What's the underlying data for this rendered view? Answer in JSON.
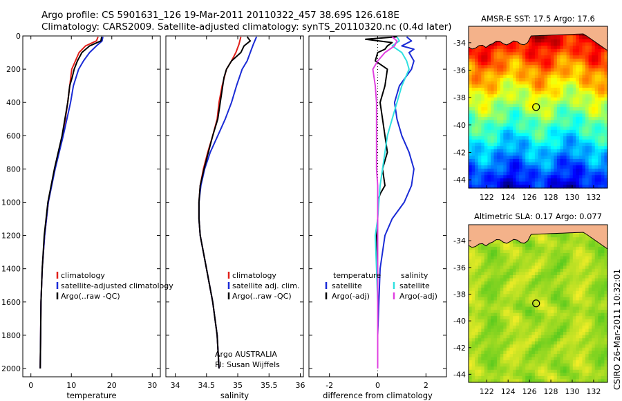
{
  "header": {
    "line1": "Argo profile: CS 5901631_126 19-Mar-2011 20110322_457 38.69S 126.618E",
    "line2": "Climatology: CARS2009. Satellite-adjusted climatology: synTS_20110320.nc (0.4d later)"
  },
  "side_stamp": "CSIRO 26-Mar-2011 10:32:01",
  "colors": {
    "climatology": "#e0201a",
    "satellite": "#1a2bd6",
    "argo": "#000000",
    "argo_adj": "#e040e0",
    "satellite_cyan": "#30e0e0",
    "land": "#f4b28a"
  },
  "chart_data": [
    {
      "type": "line",
      "xlabel": "temperature",
      "xticks": [
        0,
        10,
        20,
        30
      ],
      "xlim": [
        -2,
        32
      ],
      "yticks": [
        0,
        200,
        400,
        600,
        800,
        1000,
        1200,
        1400,
        1600,
        1800,
        2000
      ],
      "ylim": [
        2050,
        0
      ],
      "legend": [
        "climatology",
        "satellite-adjusted climatology",
        "Argo(..raw -QC)"
      ],
      "series": [
        {
          "name": "climatology",
          "color": "#e0201a",
          "depth": [
            5,
            30,
            60,
            100,
            150,
            200,
            300,
            400,
            500,
            600,
            800,
            1000,
            1200,
            1400,
            1600,
            1800,
            2000
          ],
          "values": [
            16.6,
            16.2,
            13.5,
            11.9,
            11.0,
            10.1,
            9.6,
            9.1,
            8.5,
            7.8,
            5.9,
            4.3,
            3.4,
            2.8,
            2.5,
            2.4,
            2.3
          ]
        },
        {
          "name": "satellite-adjusted climatology",
          "color": "#1a2bd6",
          "depth": [
            5,
            30,
            60,
            100,
            150,
            200,
            300,
            400,
            500,
            600,
            800,
            1000,
            1200,
            1400,
            1600,
            1800,
            2000
          ],
          "values": [
            17.8,
            17.6,
            16.2,
            14.5,
            13.0,
            11.8,
            10.5,
            9.8,
            8.9,
            8.0,
            6.0,
            4.3,
            3.4,
            2.8,
            2.5,
            2.4,
            2.3
          ]
        },
        {
          "name": "Argo(..raw -QC)",
          "color": "#000000",
          "depth": [
            5,
            30,
            60,
            100,
            150,
            200,
            250,
            300,
            400,
            500,
            600,
            800,
            1000,
            1200,
            1400,
            1600,
            1800,
            2000
          ],
          "values": [
            17.5,
            17.3,
            14.5,
            12.6,
            11.5,
            10.7,
            10.2,
            9.6,
            9.1,
            8.4,
            7.7,
            5.8,
            4.2,
            3.3,
            2.8,
            2.5,
            2.4,
            2.3
          ]
        }
      ]
    },
    {
      "type": "line",
      "xlabel": "salinity",
      "xticks": [
        34,
        34.5,
        35,
        35.5,
        36
      ],
      "xlim": [
        33.85,
        36.05
      ],
      "ylim": [
        2050,
        0
      ],
      "legend": [
        "climatology",
        "satellite adj. clim.",
        "Argo(..raw -QC)"
      ],
      "annotations": [
        "Argo AUSTRALIA",
        "PI: Susan Wijffels"
      ],
      "series": [
        {
          "name": "climatology",
          "color": "#e0201a",
          "depth": [
            5,
            50,
            100,
            150,
            200,
            300,
            400,
            500,
            600,
            700,
            800,
            900,
            1000,
            1100,
            1200,
            1400,
            1600,
            1800,
            2000
          ],
          "values": [
            35.05,
            35.02,
            34.97,
            34.9,
            34.82,
            34.75,
            34.7,
            34.67,
            34.6,
            34.52,
            34.45,
            34.4,
            34.38,
            34.38,
            34.4,
            34.5,
            34.6,
            34.67,
            34.7
          ]
        },
        {
          "name": "satellite adj. clim.",
          "color": "#1a2bd6",
          "depth": [
            5,
            50,
            100,
            150,
            200,
            300,
            400,
            500,
            600,
            700,
            800,
            900,
            1000,
            1100,
            1200,
            1400,
            1600,
            1800,
            2000
          ],
          "values": [
            35.3,
            35.25,
            35.2,
            35.15,
            35.07,
            34.98,
            34.9,
            34.8,
            34.68,
            34.56,
            34.47,
            34.41,
            34.38,
            34.38,
            34.4,
            34.5,
            34.6,
            34.67,
            34.7
          ]
        },
        {
          "name": "Argo(..raw -QC)",
          "color": "#000000",
          "depth": [
            5,
            30,
            60,
            100,
            150,
            200,
            250,
            300,
            400,
            500,
            600,
            700,
            800,
            900,
            1000,
            1100,
            1200,
            1400,
            1600,
            1800,
            2000
          ],
          "values": [
            35.15,
            35.2,
            35.1,
            35.05,
            34.9,
            34.82,
            34.78,
            34.76,
            34.72,
            34.68,
            34.6,
            34.53,
            34.46,
            34.4,
            34.38,
            34.38,
            34.4,
            34.5,
            34.6,
            34.67,
            34.7
          ]
        }
      ]
    },
    {
      "type": "line",
      "xlabel": "difference from climatology",
      "xticks": [
        -2,
        0,
        2
      ],
      "xlim": [
        -2.85,
        2.85
      ],
      "ylim": [
        2050,
        0
      ],
      "legend_temperature": {
        "heading": "temperature",
        "items": [
          "satellite",
          "Argo(-adj)"
        ]
      },
      "legend_salinity": {
        "heading": "salinity",
        "items": [
          "satellite",
          "Argo(-adj)"
        ]
      },
      "series": [
        {
          "name": "temperature satellite",
          "color": "#1a2bd6",
          "depth": [
            5,
            30,
            60,
            80,
            100,
            150,
            200,
            300,
            400,
            500,
            600,
            700,
            800,
            900,
            1000,
            1100,
            1200,
            1400,
            1600,
            1800,
            2000
          ],
          "values": [
            1.2,
            1.4,
            1.0,
            1.5,
            1.3,
            1.5,
            1.4,
            0.9,
            0.7,
            0.8,
            1.0,
            1.3,
            1.5,
            1.4,
            1.1,
            0.6,
            0.3,
            0.1,
            0.05,
            0.0,
            0.0
          ]
        },
        {
          "name": "temperature Argo(-adj)",
          "color": "#000000",
          "depth": [
            5,
            20,
            40,
            60,
            80,
            100,
            150,
            200,
            300,
            400,
            500,
            600,
            700,
            800,
            900,
            950,
            1000,
            1100,
            1200,
            1400,
            1600,
            1800,
            2000
          ],
          "values": [
            0.8,
            -0.5,
            0.6,
            0.4,
            0.3,
            0.0,
            -0.1,
            0.4,
            0.3,
            0.1,
            0.2,
            0.3,
            0.4,
            0.2,
            0.3,
            0.1,
            0.0,
            0.0,
            -0.05,
            0.0,
            0.0,
            0.0,
            0.0
          ]
        },
        {
          "name": "salinity satellite",
          "color": "#30e0e0",
          "depth": [
            5,
            30,
            60,
            100,
            150,
            200,
            300,
            400,
            500,
            600,
            700,
            800,
            900,
            1000,
            1100,
            1200,
            1400,
            1600,
            1800,
            2000
          ],
          "values": [
            0.8,
            0.9,
            0.6,
            1.0,
            1.2,
            1.3,
            1.0,
            0.8,
            0.6,
            0.4,
            0.3,
            0.2,
            0.1,
            0.05,
            0.0,
            -0.1,
            -0.05,
            0.0,
            0.0,
            0.0
          ]
        },
        {
          "name": "salinity Argo(-adj)",
          "color": "#e040e0",
          "depth": [
            5,
            30,
            60,
            100,
            150,
            200,
            300,
            400,
            500,
            600,
            700,
            800,
            900,
            1000,
            1100,
            1200,
            1400,
            1600,
            1800,
            2000
          ],
          "values": [
            0.6,
            0.8,
            0.7,
            0.3,
            0.0,
            -0.2,
            -0.1,
            -0.05,
            -0.05,
            -0.05,
            -0.05,
            -0.05,
            0.0,
            0.0,
            0.0,
            0.0,
            0.0,
            0.0,
            0.0,
            0.0
          ]
        }
      ]
    },
    {
      "type": "heatmap",
      "title": "AMSR-E SST: 17.5 Argo: 17.6",
      "xticks": [
        122,
        124,
        126,
        128,
        130,
        132
      ],
      "yticks": [
        -34,
        -36,
        -38,
        -40,
        -42,
        -44
      ],
      "xlim": [
        120.3,
        133.3
      ],
      "ylim": [
        -44.6,
        -32.8
      ],
      "colormap": "jet",
      "marker": {
        "lon": 126.618,
        "lat": -38.69
      }
    },
    {
      "type": "heatmap",
      "title": "Altimetric SLA: 0.17 Argo: 0.077",
      "xticks": [
        122,
        124,
        126,
        128,
        130,
        132
      ],
      "yticks": [
        -34,
        -36,
        -38,
        -40,
        -42,
        -44
      ],
      "xlim": [
        120.3,
        133.3
      ],
      "ylim": [
        -44.6,
        -32.8
      ],
      "colormap": "green-yellow",
      "marker": {
        "lon": 126.618,
        "lat": -38.69
      }
    }
  ]
}
